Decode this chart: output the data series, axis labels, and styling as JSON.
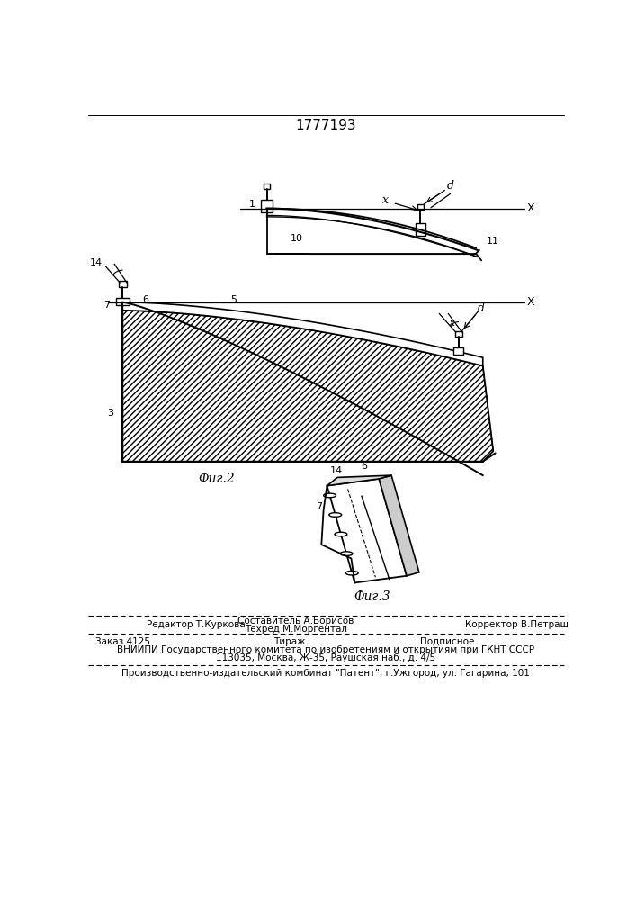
{
  "patent_number": "1777193",
  "fig2_caption": "Фиг.2",
  "fig3_caption": "Фиг.3",
  "footer_line1_left": "Редактор Т.Куркова",
  "footer_sostavitel": "Составитель А.Борисов",
  "footer_tehred": "Техред М.Моргентал",
  "footer_line1_right": "Корректор В.Петраш",
  "footer_order": "Заказ 4125",
  "footer_tirazh": "Тираж",
  "footer_podpisnoe": "Подписное",
  "footer_vniili": "ВНИИПИ Государственного комитета по изобретениям и открытиям при ГКНТ СССР",
  "footer_address": "113035, Москва, Ж-35, Раушская наб., д. 4/5",
  "footer_patent": "Производственно-издательский комбинат \"Патент\", г.Ужгород, ул. Гагарина, 101",
  "bg_color": "#ffffff",
  "line_color": "#000000"
}
